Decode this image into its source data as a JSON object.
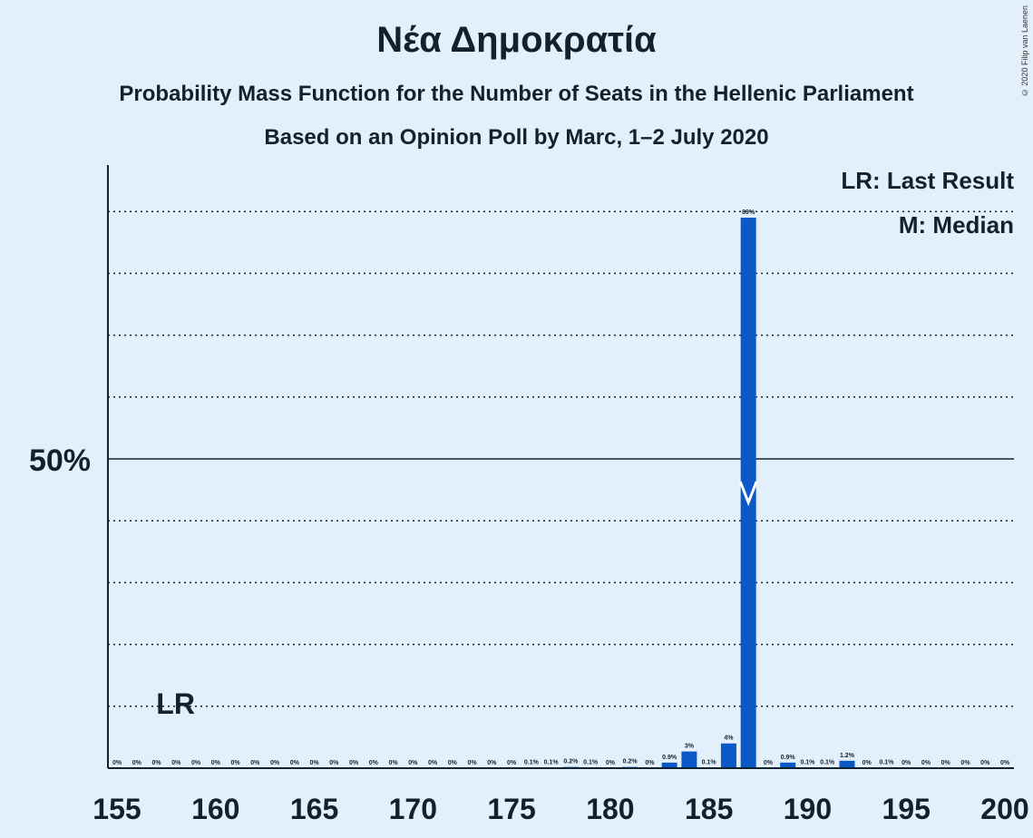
{
  "chart_data": {
    "type": "bar",
    "title": "Νέα Δημοκρατία",
    "subtitle": "Probability Mass Function for the Number of Seats in the Hellenic Parliament",
    "subtitle2": "Based on an Opinion Poll by Marc, 1–2 July 2020",
    "copyright": "© 2020 Filip van Laenen",
    "x": [
      155,
      156,
      157,
      158,
      159,
      160,
      161,
      162,
      163,
      164,
      165,
      166,
      167,
      168,
      169,
      170,
      171,
      172,
      173,
      174,
      175,
      176,
      177,
      178,
      179,
      180,
      181,
      182,
      183,
      184,
      185,
      186,
      187,
      188,
      189,
      190,
      191,
      192,
      193,
      194,
      195,
      196,
      197,
      198,
      199,
      200
    ],
    "values": [
      0,
      0,
      0,
      0,
      0,
      0,
      0,
      0,
      0,
      0,
      0,
      0,
      0,
      0,
      0,
      0,
      0,
      0,
      0,
      0,
      0,
      0.1,
      0.1,
      0.2,
      0.1,
      0,
      0.2,
      0,
      0.9,
      2.7,
      0.1,
      4.0,
      89.0,
      0,
      0.9,
      0.1,
      0.1,
      1.2,
      0,
      0.1,
      0,
      0,
      0,
      0,
      0,
      0
    ],
    "data_labels": [
      "0%",
      "0%",
      "0%",
      "0%",
      "0%",
      "0%",
      "0%",
      "0%",
      "0%",
      "0%",
      "0%",
      "0%",
      "0%",
      "0%",
      "0%",
      "0%",
      "0%",
      "0%",
      "0%",
      "0%",
      "0%",
      "0.1%",
      "0.1%",
      "0.2%",
      "0.1%",
      "0%",
      "0.2%",
      "0%",
      "0.9%",
      "3%",
      "0.1%",
      "4%",
      "89%",
      "0%",
      "0.9%",
      "0.1%",
      "0.1%",
      "1.2%",
      "0%",
      "0.1%",
      "0%",
      "0%",
      "0%",
      "0%",
      "0%",
      "0%"
    ],
    "x_ticks": [
      "155",
      "160",
      "165",
      "170",
      "175",
      "180",
      "185",
      "190",
      "195",
      "200"
    ],
    "y_tick_label": "50%",
    "ylim": [
      0,
      100
    ],
    "grid": "dotted every 10%",
    "last_result_seat": 158,
    "last_result_label": "LR",
    "median_seat": 187,
    "median_marker": "M",
    "legend": [
      "LR: Last Result",
      "M: Median"
    ],
    "legend_position": "top-right",
    "colors": {
      "bar": "#0b59c8",
      "background": "#e3f0fc",
      "text": "#10222e"
    }
  }
}
